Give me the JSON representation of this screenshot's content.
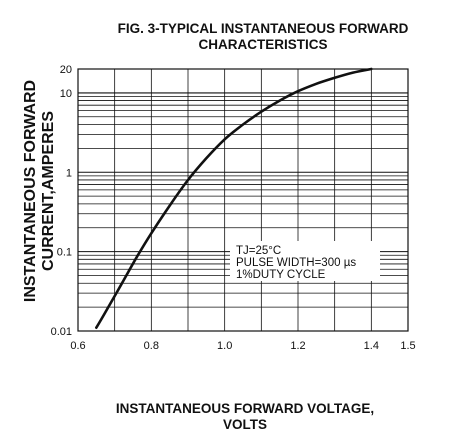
{
  "chart_data": {
    "type": "line",
    "title_lines": [
      "FIG. 3-TYPICAL INSTANTANEOUS FORWARD",
      "CHARACTERISTICS"
    ],
    "xlabel_lines": [
      "INSTANTANEOUS FORWARD VOLTAGE,",
      "VOLTS"
    ],
    "ylabel_lines": [
      "INSTANTANEOUS FORWARD",
      "CURRENT,AMPERES"
    ],
    "x_ticks": [
      "0.6",
      "0.8",
      "1.0",
      "1.2",
      "1.4",
      "1.5"
    ],
    "y_ticks": [
      "0.01",
      "0.1",
      "1",
      "10",
      "20"
    ],
    "xlim": [
      0.6,
      1.5
    ],
    "ylim": [
      0.01,
      20
    ],
    "y_scale": "log",
    "grid": true,
    "annotation_lines": [
      "TJ=25°C",
      "PULSE WIDTH=300 µs",
      "1%DUTY CYCLE"
    ],
    "series": [
      {
        "x": [
          0.65,
          0.68,
          0.72,
          0.76,
          0.8,
          0.85,
          0.9,
          0.95,
          1.0,
          1.05,
          1.1,
          1.15,
          1.2,
          1.25,
          1.3,
          1.35,
          1.4
        ],
        "y": [
          0.011,
          0.019,
          0.04,
          0.085,
          0.17,
          0.38,
          0.8,
          1.5,
          2.6,
          4.0,
          5.8,
          8.0,
          10.5,
          13.0,
          15.5,
          18.0,
          20.0
        ]
      }
    ]
  }
}
